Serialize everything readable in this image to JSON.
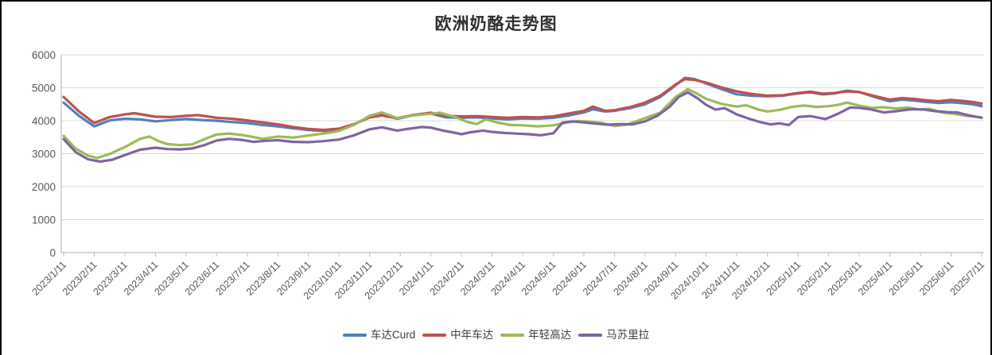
{
  "frame": {
    "background": "#ffffff",
    "border_color": "#0a0a0a"
  },
  "chart_data": {
    "type": "line",
    "title": "欧洲奶酪走势图",
    "xlabel": "",
    "ylabel": "",
    "ylim": [
      0,
      6000
    ],
    "y_ticks": [
      0,
      1000,
      2000,
      3000,
      4000,
      5000,
      6000
    ],
    "grid": "horizontal",
    "legend_position": "bottom",
    "axis_color": "#BFBFBF",
    "grid_color": "#D9D9D9",
    "tick_label_color": "#595959",
    "x_tick_labels": [
      "2023/1/11",
      "2023/2/11",
      "2023/3/11",
      "2023/4/11",
      "2023/5/11",
      "2023/6/11",
      "2023/7/11",
      "2023/8/11",
      "2023/9/11",
      "2023/10/11",
      "2023/11/11",
      "2023/12/11",
      "2024/1/11",
      "2024/2/11",
      "2024/3/11",
      "2024/4/11",
      "2024/5/11",
      "2024/6/11",
      "2024/7/11",
      "2024/8/11",
      "2024/9/11",
      "2024/10/11",
      "2024/11/11",
      "2024/12/11",
      "2025/1/11",
      "2025/2/11",
      "2025/3/11",
      "2025/4/11",
      "2025/5/11",
      "2025/6/11",
      "2025/7/11"
    ],
    "x_note": "series points are [month_index, value]; month_index 0 = 2023/1/11, 30 = 2025/7/11",
    "series": [
      {
        "name": "车达Curd",
        "color": "#4F81BD",
        "points": [
          [
            0,
            4550
          ],
          [
            0.5,
            4150
          ],
          [
            1,
            3830
          ],
          [
            1.5,
            4010
          ],
          [
            2,
            4060
          ],
          [
            2.5,
            4040
          ],
          [
            3,
            3980
          ],
          [
            3.5,
            4020
          ],
          [
            4,
            4050
          ],
          [
            4.5,
            4020
          ],
          [
            5,
            4000
          ],
          [
            5.5,
            3960
          ],
          [
            6,
            3930
          ],
          [
            6.5,
            3870
          ],
          [
            7,
            3830
          ],
          [
            7.5,
            3770
          ],
          [
            8,
            3720
          ],
          [
            8.5,
            3690
          ],
          [
            9,
            3730
          ],
          [
            9.5,
            3890
          ],
          [
            10,
            4120
          ],
          [
            10.4,
            4170
          ],
          [
            10.9,
            4060
          ],
          [
            11.4,
            4160
          ],
          [
            12,
            4220
          ],
          [
            12.5,
            4100
          ],
          [
            13,
            4090
          ],
          [
            13.5,
            4100
          ],
          [
            14,
            4070
          ],
          [
            14.5,
            4040
          ],
          [
            15,
            4070
          ],
          [
            15.5,
            4060
          ],
          [
            16,
            4090
          ],
          [
            16.5,
            4160
          ],
          [
            17,
            4250
          ],
          [
            17.3,
            4350
          ],
          [
            17.7,
            4280
          ],
          [
            18,
            4300
          ],
          [
            18.5,
            4380
          ],
          [
            19,
            4500
          ],
          [
            19.5,
            4720
          ],
          [
            20,
            5080
          ],
          [
            20.3,
            5300
          ],
          [
            20.6,
            5270
          ],
          [
            21,
            5130
          ],
          [
            21.5,
            4960
          ],
          [
            22,
            4800
          ],
          [
            22.5,
            4760
          ],
          [
            23,
            4740
          ],
          [
            23.5,
            4760
          ],
          [
            24,
            4830
          ],
          [
            24.4,
            4860
          ],
          [
            24.8,
            4800
          ],
          [
            25.2,
            4830
          ],
          [
            25.6,
            4910
          ],
          [
            26,
            4870
          ],
          [
            26.5,
            4720
          ],
          [
            27,
            4590
          ],
          [
            27.4,
            4640
          ],
          [
            27.8,
            4610
          ],
          [
            28.2,
            4570
          ],
          [
            28.6,
            4540
          ],
          [
            29,
            4560
          ],
          [
            29.4,
            4530
          ],
          [
            29.7,
            4500
          ],
          [
            30,
            4440
          ]
        ]
      },
      {
        "name": "中年车达",
        "color": "#C0504D",
        "points": [
          [
            0,
            4720
          ],
          [
            0.5,
            4280
          ],
          [
            1,
            3930
          ],
          [
            1.5,
            4110
          ],
          [
            2,
            4190
          ],
          [
            2.3,
            4230
          ],
          [
            3,
            4120
          ],
          [
            3.5,
            4110
          ],
          [
            4,
            4150
          ],
          [
            4.4,
            4170
          ],
          [
            5,
            4090
          ],
          [
            5.5,
            4060
          ],
          [
            6,
            4010
          ],
          [
            6.5,
            3950
          ],
          [
            7,
            3890
          ],
          [
            7.5,
            3810
          ],
          [
            8,
            3750
          ],
          [
            8.5,
            3720
          ],
          [
            9,
            3760
          ],
          [
            9.5,
            3900
          ],
          [
            10,
            4100
          ],
          [
            10.4,
            4160
          ],
          [
            10.9,
            4080
          ],
          [
            11.4,
            4170
          ],
          [
            12,
            4240
          ],
          [
            12.5,
            4150
          ],
          [
            13,
            4130
          ],
          [
            13.5,
            4140
          ],
          [
            14,
            4110
          ],
          [
            14.5,
            4090
          ],
          [
            15,
            4110
          ],
          [
            15.5,
            4100
          ],
          [
            16,
            4130
          ],
          [
            16.5,
            4220
          ],
          [
            17,
            4300
          ],
          [
            17.3,
            4430
          ],
          [
            17.7,
            4300
          ],
          [
            18,
            4320
          ],
          [
            18.5,
            4410
          ],
          [
            19,
            4550
          ],
          [
            19.5,
            4760
          ],
          [
            20,
            5100
          ],
          [
            20.3,
            5260
          ],
          [
            20.6,
            5240
          ],
          [
            21,
            5160
          ],
          [
            21.5,
            5010
          ],
          [
            22,
            4890
          ],
          [
            22.5,
            4810
          ],
          [
            23,
            4760
          ],
          [
            23.5,
            4770
          ],
          [
            24,
            4840
          ],
          [
            24.4,
            4880
          ],
          [
            24.8,
            4820
          ],
          [
            25.2,
            4840
          ],
          [
            25.6,
            4890
          ],
          [
            26,
            4870
          ],
          [
            26.5,
            4750
          ],
          [
            27,
            4640
          ],
          [
            27.4,
            4690
          ],
          [
            27.8,
            4660
          ],
          [
            28.2,
            4620
          ],
          [
            28.6,
            4590
          ],
          [
            29,
            4630
          ],
          [
            29.4,
            4600
          ],
          [
            29.7,
            4570
          ],
          [
            30,
            4520
          ]
        ]
      },
      {
        "name": "年轻高达",
        "color": "#9BBB59",
        "points": [
          [
            0,
            3540
          ],
          [
            0.4,
            3150
          ],
          [
            0.8,
            2940
          ],
          [
            1.1,
            2870
          ],
          [
            1.5,
            2990
          ],
          [
            2,
            3200
          ],
          [
            2.5,
            3450
          ],
          [
            2.8,
            3520
          ],
          [
            3.1,
            3380
          ],
          [
            3.4,
            3290
          ],
          [
            3.8,
            3260
          ],
          [
            4.2,
            3280
          ],
          [
            4.6,
            3440
          ],
          [
            5,
            3580
          ],
          [
            5.4,
            3610
          ],
          [
            5.8,
            3570
          ],
          [
            6,
            3540
          ],
          [
            6.5,
            3450
          ],
          [
            7,
            3520
          ],
          [
            7.5,
            3490
          ],
          [
            8,
            3550
          ],
          [
            8.5,
            3610
          ],
          [
            9,
            3690
          ],
          [
            9.5,
            3880
          ],
          [
            10,
            4150
          ],
          [
            10.4,
            4250
          ],
          [
            10.9,
            4080
          ],
          [
            11.4,
            4160
          ],
          [
            12,
            4210
          ],
          [
            12.3,
            4240
          ],
          [
            12.8,
            4110
          ],
          [
            13.2,
            3960
          ],
          [
            13.5,
            3900
          ],
          [
            13.8,
            4040
          ],
          [
            14.2,
            3940
          ],
          [
            14.6,
            3870
          ],
          [
            15,
            3860
          ],
          [
            15.5,
            3830
          ],
          [
            16,
            3860
          ],
          [
            16.4,
            3940
          ],
          [
            16.8,
            3990
          ],
          [
            17.2,
            3970
          ],
          [
            17.6,
            3930
          ],
          [
            18,
            3840
          ],
          [
            18.4,
            3880
          ],
          [
            19,
            4080
          ],
          [
            19.5,
            4250
          ],
          [
            20,
            4720
          ],
          [
            20.4,
            4960
          ],
          [
            20.7,
            4820
          ],
          [
            21,
            4660
          ],
          [
            21.5,
            4510
          ],
          [
            22,
            4430
          ],
          [
            22.3,
            4470
          ],
          [
            22.7,
            4340
          ],
          [
            23,
            4280
          ],
          [
            23.4,
            4330
          ],
          [
            23.8,
            4420
          ],
          [
            24.2,
            4460
          ],
          [
            24.6,
            4420
          ],
          [
            25,
            4440
          ],
          [
            25.3,
            4480
          ],
          [
            25.6,
            4550
          ],
          [
            26,
            4460
          ],
          [
            26.4,
            4390
          ],
          [
            26.8,
            4410
          ],
          [
            27.2,
            4370
          ],
          [
            27.6,
            4400
          ],
          [
            28,
            4340
          ],
          [
            28.3,
            4360
          ],
          [
            28.7,
            4250
          ],
          [
            29.1,
            4210
          ],
          [
            29.5,
            4150
          ],
          [
            30,
            4100
          ]
        ]
      },
      {
        "name": "马苏里拉",
        "color": "#8064A2",
        "points": [
          [
            0,
            3440
          ],
          [
            0.4,
            3040
          ],
          [
            0.8,
            2830
          ],
          [
            1.2,
            2760
          ],
          [
            1.6,
            2820
          ],
          [
            2,
            2960
          ],
          [
            2.5,
            3120
          ],
          [
            3,
            3180
          ],
          [
            3.4,
            3140
          ],
          [
            3.8,
            3130
          ],
          [
            4.2,
            3160
          ],
          [
            4.6,
            3260
          ],
          [
            5,
            3400
          ],
          [
            5.4,
            3450
          ],
          [
            5.8,
            3420
          ],
          [
            6.2,
            3360
          ],
          [
            6.6,
            3390
          ],
          [
            7,
            3410
          ],
          [
            7.5,
            3360
          ],
          [
            8,
            3350
          ],
          [
            8.5,
            3380
          ],
          [
            9,
            3430
          ],
          [
            9.5,
            3560
          ],
          [
            10,
            3740
          ],
          [
            10.4,
            3800
          ],
          [
            10.9,
            3700
          ],
          [
            11.3,
            3760
          ],
          [
            11.7,
            3810
          ],
          [
            12,
            3790
          ],
          [
            12.4,
            3700
          ],
          [
            12.7,
            3650
          ],
          [
            13,
            3590
          ],
          [
            13.3,
            3650
          ],
          [
            13.7,
            3700
          ],
          [
            14,
            3660
          ],
          [
            14.4,
            3630
          ],
          [
            14.8,
            3610
          ],
          [
            15.2,
            3590
          ],
          [
            15.6,
            3560
          ],
          [
            16,
            3620
          ],
          [
            16.3,
            3940
          ],
          [
            16.6,
            3980
          ],
          [
            17,
            3950
          ],
          [
            17.4,
            3910
          ],
          [
            17.8,
            3880
          ],
          [
            18.2,
            3900
          ],
          [
            18.6,
            3890
          ],
          [
            19,
            3980
          ],
          [
            19.4,
            4150
          ],
          [
            19.8,
            4420
          ],
          [
            20.1,
            4720
          ],
          [
            20.4,
            4860
          ],
          [
            20.7,
            4690
          ],
          [
            21,
            4480
          ],
          [
            21.3,
            4340
          ],
          [
            21.6,
            4380
          ],
          [
            22,
            4190
          ],
          [
            22.4,
            4060
          ],
          [
            22.8,
            3950
          ],
          [
            23.1,
            3890
          ],
          [
            23.4,
            3920
          ],
          [
            23.7,
            3870
          ],
          [
            24,
            4110
          ],
          [
            24.4,
            4140
          ],
          [
            24.9,
            4050
          ],
          [
            25.3,
            4210
          ],
          [
            25.7,
            4400
          ],
          [
            26,
            4390
          ],
          [
            26.4,
            4340
          ],
          [
            26.8,
            4250
          ],
          [
            27.3,
            4300
          ],
          [
            27.7,
            4350
          ],
          [
            28.1,
            4340
          ],
          [
            28.5,
            4290
          ],
          [
            28.9,
            4260
          ],
          [
            29.2,
            4250
          ],
          [
            29.6,
            4160
          ],
          [
            30,
            4090
          ]
        ]
      }
    ]
  }
}
